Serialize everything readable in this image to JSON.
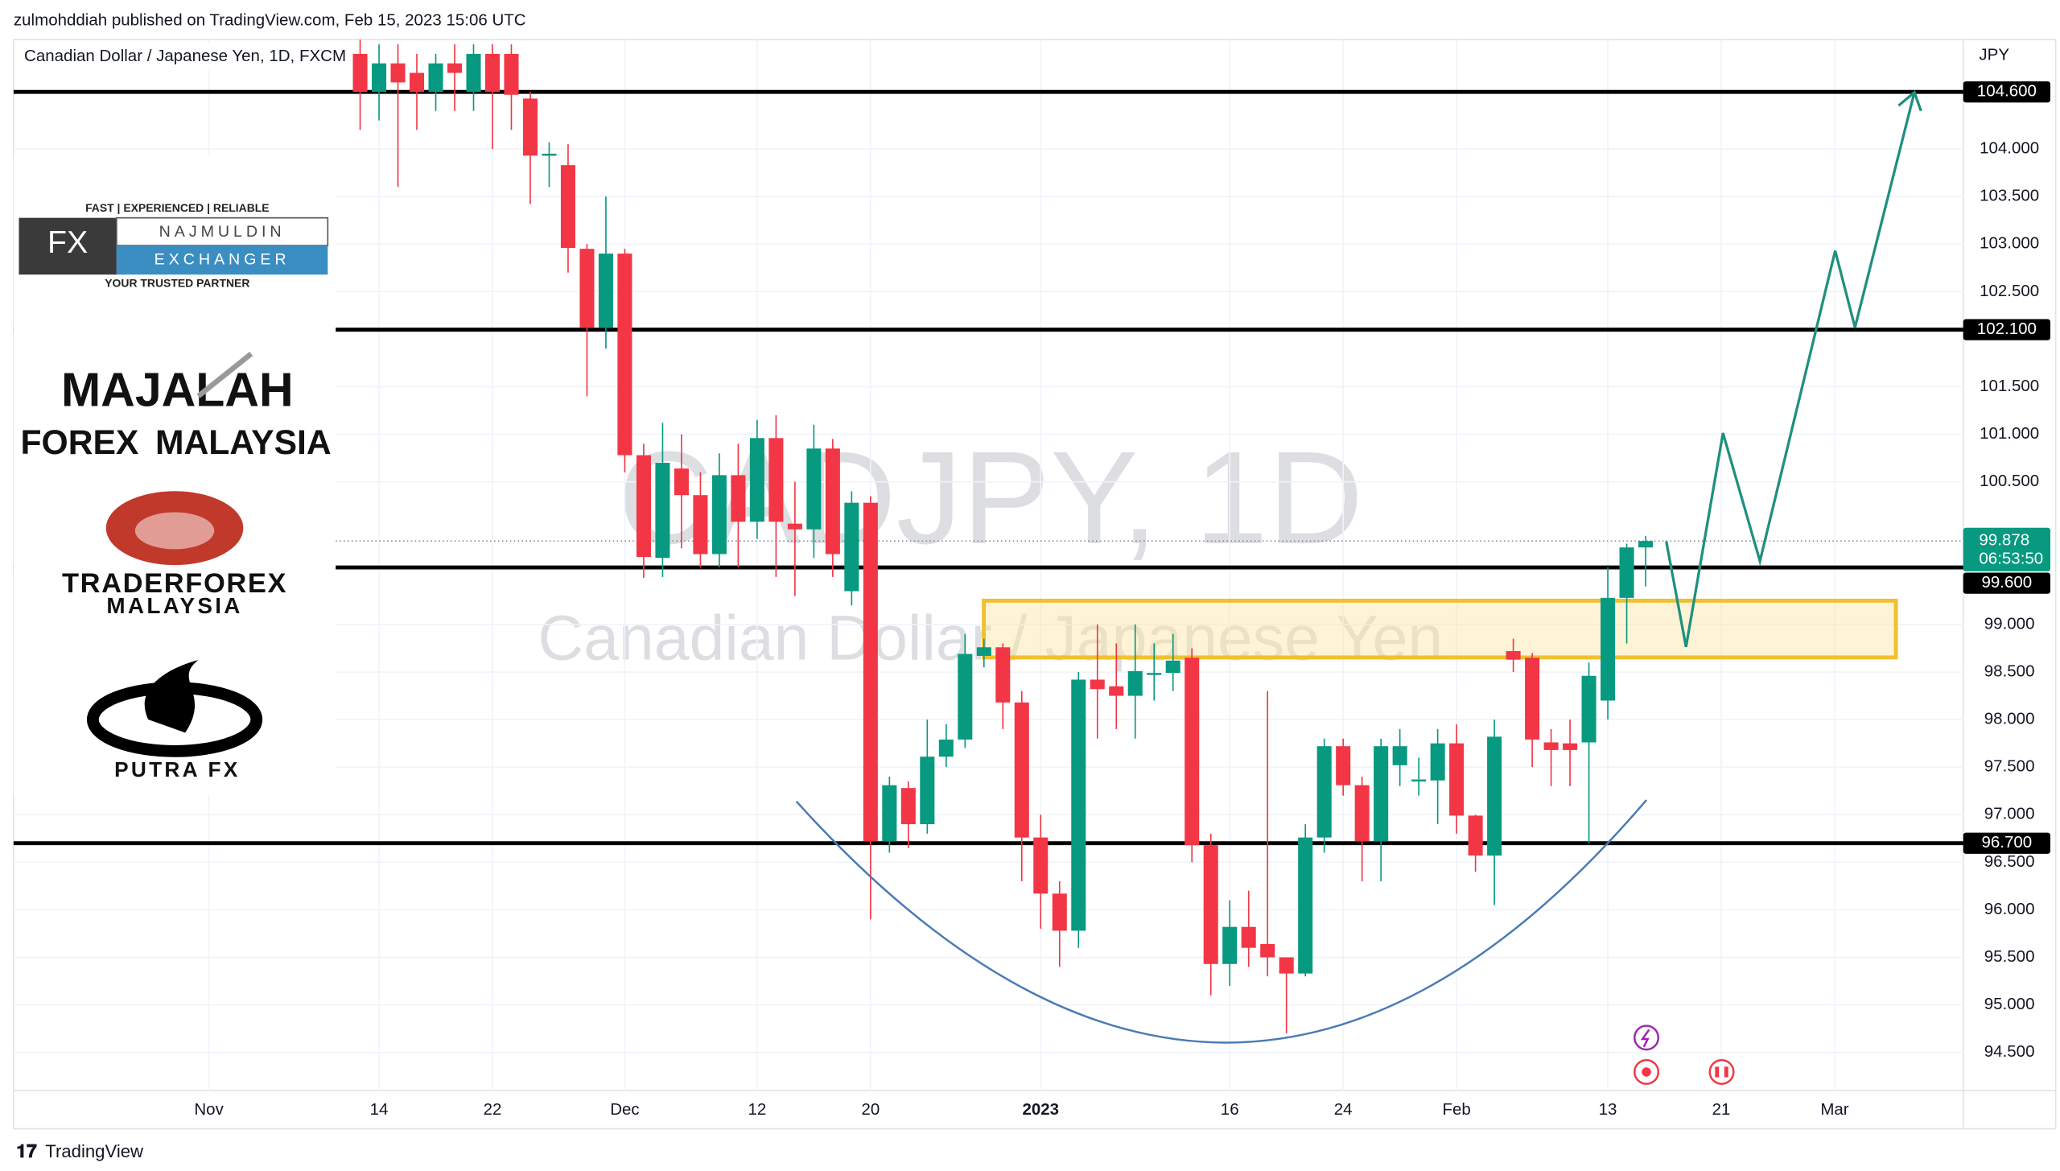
{
  "header": {
    "published": "zulmohddiah published on TradingView.com, Feb 15, 2023 15:06 UTC"
  },
  "footer": {
    "brand": "TradingView"
  },
  "logos": {
    "fx_tagline": "FAST | EXPERIENCED | RELIABLE",
    "fx_mark": "FX",
    "fx_name_top": "NAJMULDIN",
    "fx_name_bottom": "EXCHANGER",
    "fx_motto": "YOUR TRUSTED PARTNER",
    "majalah_top": "MAJALAH",
    "majalah_left": "FOREX",
    "majalah_right": "MALAYSIA",
    "trader_top": "TRADERFOREX",
    "trader_bottom": "MALAYSIA",
    "putra": "PUTRA FX"
  },
  "chart_data": {
    "type": "candlestick",
    "title": "Canadian Dollar / Japanese Yen, 1D, FXCM",
    "watermark": "CADJPY, 1D",
    "watermark_subtitle": "Canadian Dollar / Japanese Yen",
    "y_axis_label": "JPY",
    "up_color": "#089981",
    "down_color": "#f23645",
    "x": [
      8,
      9,
      10,
      11,
      12,
      13,
      14,
      15,
      16,
      17,
      18,
      19,
      20,
      21,
      22,
      23,
      24,
      25,
      26,
      27,
      28,
      29,
      30,
      31,
      32,
      33,
      34,
      35,
      36,
      37,
      38,
      39,
      40,
      41,
      42,
      43,
      44,
      45,
      46,
      47,
      48,
      49,
      50,
      51,
      52,
      53,
      54,
      55,
      56,
      57,
      58,
      59,
      60,
      61,
      62,
      63,
      64,
      65,
      66,
      67,
      68,
      69,
      70,
      71,
      72,
      73,
      74,
      75,
      76
    ],
    "open": [
      105.0,
      104.6,
      104.9,
      104.8,
      104.6,
      104.9,
      104.6,
      105.0,
      105.0,
      104.53,
      103.93,
      103.83,
      102.95,
      102.12,
      102.9,
      100.78,
      99.7,
      100.64,
      100.36,
      99.74,
      100.57,
      100.08,
      100.96,
      100.06,
      100.0,
      100.85,
      99.35,
      100.28,
      96.72,
      97.28,
      96.9,
      97.61,
      97.79,
      98.67,
      98.76,
      98.18,
      96.76,
      96.17,
      95.78,
      98.42,
      98.35,
      98.25,
      98.49,
      98.49,
      98.65,
      96.68,
      95.43,
      95.82,
      95.64,
      95.5,
      95.33,
      96.76,
      97.72,
      97.31,
      96.72,
      97.52,
      97.36,
      97.36,
      97.75,
      96.99,
      96.57,
      98.72,
      98.65,
      97.76,
      97.75,
      97.76,
      98.2,
      99.28,
      99.81
    ],
    "high": [
      105.2,
      105.1,
      105.1,
      105.0,
      105.0,
      105.1,
      105.1,
      105.1,
      105.1,
      104.6,
      104.07,
      104.05,
      103.0,
      103.5,
      102.95,
      100.9,
      101.12,
      101.0,
      100.6,
      100.8,
      100.9,
      101.15,
      101.2,
      100.5,
      101.1,
      100.95,
      100.4,
      100.35,
      97.4,
      97.35,
      98.0,
      97.95,
      98.9,
      98.85,
      98.8,
      98.3,
      97.0,
      96.3,
      98.5,
      99.0,
      98.8,
      99.0,
      98.8,
      98.9,
      98.75,
      96.8,
      96.1,
      96.2,
      98.3,
      95.5,
      96.9,
      97.8,
      97.8,
      97.4,
      97.8,
      97.9,
      97.6,
      97.9,
      97.95,
      97.0,
      98.0,
      98.85,
      98.7,
      97.9,
      98.0,
      98.6,
      99.6,
      99.85,
      99.93
    ],
    "low": [
      104.2,
      104.3,
      103.6,
      104.2,
      104.4,
      104.4,
      104.4,
      104.0,
      104.2,
      103.42,
      103.6,
      102.7,
      101.4,
      101.9,
      100.6,
      99.49,
      99.5,
      99.8,
      99.6,
      99.6,
      99.6,
      99.9,
      99.5,
      99.3,
      99.7,
      99.5,
      99.2,
      95.9,
      96.6,
      96.65,
      96.8,
      97.5,
      97.7,
      98.55,
      97.9,
      96.3,
      95.8,
      95.4,
      95.6,
      97.8,
      97.9,
      97.8,
      98.2,
      98.3,
      96.5,
      95.1,
      95.2,
      95.4,
      95.3,
      94.7,
      95.3,
      96.6,
      97.2,
      96.3,
      96.3,
      97.3,
      97.2,
      96.9,
      96.8,
      96.4,
      96.05,
      98.5,
      97.5,
      97.3,
      97.3,
      96.7,
      98.0,
      98.8,
      99.4
    ],
    "close": [
      104.6,
      104.9,
      104.7,
      104.6,
      104.9,
      104.8,
      105.0,
      104.6,
      104.57,
      103.93,
      103.95,
      102.96,
      102.12,
      102.9,
      100.78,
      99.71,
      100.7,
      100.36,
      99.74,
      100.57,
      100.08,
      100.96,
      100.08,
      100.0,
      100.85,
      99.74,
      100.28,
      96.72,
      97.31,
      96.9,
      97.61,
      97.79,
      98.69,
      98.76,
      98.18,
      96.76,
      96.17,
      95.78,
      98.42,
      98.32,
      98.25,
      98.51,
      98.49,
      98.62,
      96.68,
      95.43,
      95.82,
      95.6,
      95.5,
      95.33,
      96.76,
      97.72,
      97.31,
      96.72,
      97.72,
      97.72,
      97.37,
      97.75,
      96.99,
      96.57,
      97.82,
      98.63,
      97.79,
      97.68,
      97.68,
      98.46,
      99.28,
      99.81,
      99.878
    ],
    "xlim": [
      -10.33,
      92.8
    ],
    "xticks": [
      {
        "value": 0,
        "label": "Nov"
      },
      {
        "value": 9,
        "label": "14"
      },
      {
        "value": 15,
        "label": "22"
      },
      {
        "value": 22,
        "label": "Dec"
      },
      {
        "value": 29,
        "label": "12"
      },
      {
        "value": 35,
        "label": "20"
      },
      {
        "value": 44,
        "label": "2023"
      },
      {
        "value": 54,
        "label": "16"
      },
      {
        "value": 60,
        "label": "24"
      },
      {
        "value": 66,
        "label": "Feb"
      },
      {
        "value": 74,
        "label": "13"
      },
      {
        "value": 80,
        "label": "21"
      },
      {
        "value": 86,
        "label": "Mar"
      }
    ],
    "ylim": [
      94.1,
      105.15
    ],
    "yticks": [
      {
        "value": 94.5,
        "label": "94.500"
      },
      {
        "value": 95,
        "label": "95.000"
      },
      {
        "value": 95.5,
        "label": "95.500"
      },
      {
        "value": 96,
        "label": "96.000"
      },
      {
        "value": 96.5,
        "label": "96.500"
      },
      {
        "value": 97,
        "label": "97.000"
      },
      {
        "value": 97.5,
        "label": "97.500"
      },
      {
        "value": 98,
        "label": "98.000"
      },
      {
        "value": 98.5,
        "label": "98.500"
      },
      {
        "value": 99,
        "label": "99.000"
      },
      {
        "value": 100.5,
        "label": "100.500"
      },
      {
        "value": 101,
        "label": "101.000"
      },
      {
        "value": 101.5,
        "label": "101.500"
      },
      {
        "value": 102.5,
        "label": "102.500"
      },
      {
        "value": 103,
        "label": "103.000"
      },
      {
        "value": 103.5,
        "label": "103.500"
      },
      {
        "value": 104,
        "label": "104.000"
      }
    ],
    "levels": [
      {
        "value": 104.6,
        "label": "104.600"
      },
      {
        "value": 102.1,
        "label": "102.100"
      },
      {
        "value": 99.6,
        "label": "99.600"
      },
      {
        "value": 96.7,
        "label": "96.700"
      }
    ],
    "last_price": {
      "value": 99.878,
      "label": "99.878"
    },
    "countdown": "06:53:50"
  }
}
